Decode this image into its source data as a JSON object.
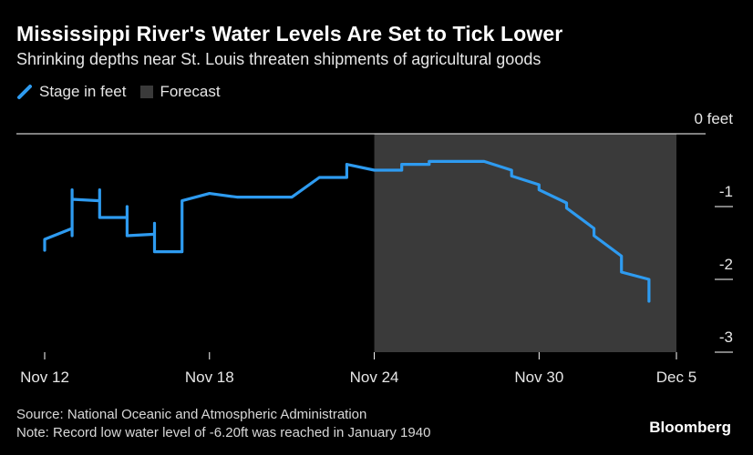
{
  "header": {
    "title": "Mississippi River's Water Levels Are Set to Tick Lower",
    "subtitle": "Shrinking depths near St. Louis threaten shipments of agricultural goods"
  },
  "legend": {
    "stage_label": "Stage in feet",
    "forecast_label": "Forecast"
  },
  "footer": {
    "source": "Source: National Oceanic and Atmospheric Administration",
    "note": "Note: Record low water level of -6.20ft was reached in January 1940"
  },
  "brand": "Bloomberg",
  "colors": {
    "line": "#2e9bf0",
    "forecast_band": "#3a3a3a",
    "axis": "#ffffff"
  },
  "chart_data": {
    "type": "line",
    "title": "Mississippi River's Water Levels Are Set to Tick Lower",
    "subtitle": "Shrinking depths near St. Louis threaten shipments of agricultural goods",
    "xlabel": "",
    "ylabel": "Stage in feet",
    "unit_label": "0 feet",
    "xlim": [
      0,
      23
    ],
    "ylim": [
      -3,
      0
    ],
    "x_ticks": [
      {
        "x": 0,
        "label": "Nov 12"
      },
      {
        "x": 6,
        "label": "Nov 18"
      },
      {
        "x": 12,
        "label": "Nov 24"
      },
      {
        "x": 18,
        "label": "Nov 30"
      },
      {
        "x": 23,
        "label": "Dec 5"
      }
    ],
    "y_ticks": [
      {
        "y": 0,
        "label": "0 feet"
      },
      {
        "y": -1,
        "label": "-1"
      },
      {
        "y": -2,
        "label": "-2"
      },
      {
        "y": -3,
        "label": "-3"
      }
    ],
    "forecast_range": [
      12,
      23
    ],
    "legend_position": "top-left",
    "series": [
      {
        "name": "Stage in feet",
        "points": [
          [
            0,
            -1.6
          ],
          [
            0,
            -1.45
          ],
          [
            1,
            -1.3
          ],
          [
            1,
            -1.4
          ],
          [
            1,
            -0.77
          ],
          [
            1,
            -0.9
          ],
          [
            2,
            -0.92
          ],
          [
            2,
            -0.77
          ],
          [
            2,
            -1.15
          ],
          [
            3,
            -1.15
          ],
          [
            3,
            -1.0
          ],
          [
            3,
            -1.4
          ],
          [
            4,
            -1.38
          ],
          [
            4,
            -1.23
          ],
          [
            4,
            -1.62
          ],
          [
            5,
            -1.62
          ],
          [
            5,
            -0.92
          ],
          [
            6,
            -0.82
          ],
          [
            7,
            -0.87
          ],
          [
            9,
            -0.87
          ],
          [
            10,
            -0.6
          ],
          [
            11,
            -0.6
          ],
          [
            11,
            -0.42
          ],
          [
            12,
            -0.5
          ],
          [
            13,
            -0.5
          ],
          [
            13,
            -0.42
          ],
          [
            14,
            -0.42
          ],
          [
            14,
            -0.38
          ],
          [
            16,
            -0.38
          ],
          [
            17,
            -0.5
          ],
          [
            17,
            -0.58
          ],
          [
            18,
            -0.7
          ],
          [
            18,
            -0.77
          ],
          [
            19,
            -0.95
          ],
          [
            19,
            -1.02
          ],
          [
            20,
            -1.3
          ],
          [
            20,
            -1.4
          ],
          [
            21,
            -1.68
          ],
          [
            21,
            -1.9
          ],
          [
            22,
            -2.0
          ],
          [
            22,
            -2.3
          ]
        ]
      }
    ]
  }
}
